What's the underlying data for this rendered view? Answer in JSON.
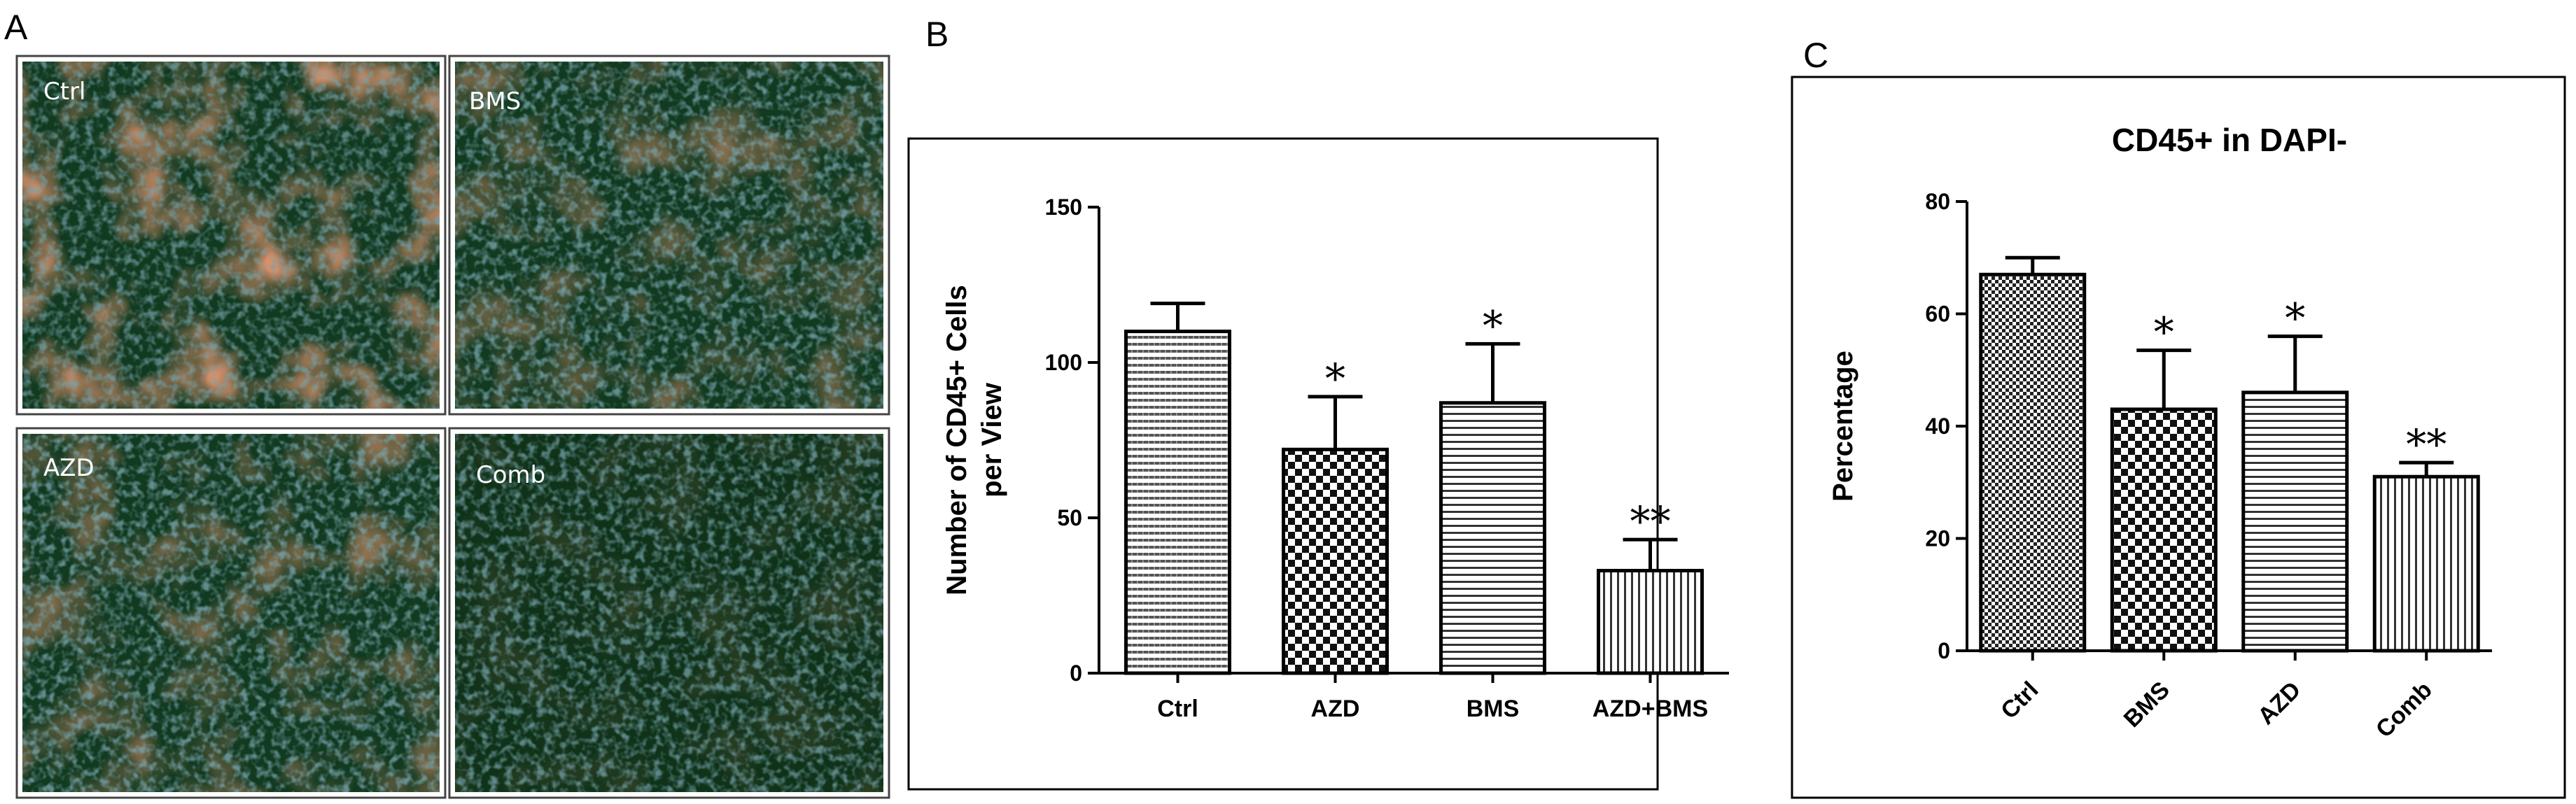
{
  "panel_labels": {
    "a": "A",
    "b": "B",
    "c": "C"
  },
  "micrographs": [
    {
      "label": "Ctrl",
      "stain": "high"
    },
    {
      "label": "BMS",
      "stain": "medium"
    },
    {
      "label": "AZD",
      "stain": "medium"
    },
    {
      "label": "Comb",
      "stain": "low"
    }
  ],
  "colors": {
    "tissue_base": "#123a20",
    "nucleus": "#2f5b66",
    "cd45_stain": "#c0502a",
    "text": "#000000"
  },
  "chart_data": [
    {
      "type": "bar",
      "panel": "B",
      "title": "",
      "ylabel_line1": "Number of CD45+ Cells",
      "ylabel_line2": "per View",
      "xlabel": "",
      "ylim": [
        0,
        150
      ],
      "yticks": [
        0,
        50,
        100,
        150
      ],
      "categories": [
        "Ctrl",
        "AZD",
        "BMS",
        "AZD+BMS"
      ],
      "values": [
        110,
        72,
        87,
        33
      ],
      "errors": [
        9,
        17,
        19,
        10
      ],
      "significance": [
        "",
        "*",
        "*",
        "**"
      ],
      "patterns": [
        "hlines-fine",
        "checker",
        "hlines",
        "vlines"
      ],
      "grid": false
    },
    {
      "type": "bar",
      "panel": "C",
      "title": "CD45+ in DAPI-",
      "ylabel": "Percentage",
      "xlabel": "",
      "ylim": [
        0,
        80
      ],
      "yticks": [
        0,
        20,
        40,
        60,
        80
      ],
      "categories": [
        "Ctrl",
        "BMS",
        "AZD",
        "Comb"
      ],
      "values": [
        67,
        43,
        46,
        31
      ],
      "errors": [
        3,
        10.5,
        10,
        2.5
      ],
      "significance": [
        "",
        "*",
        "*",
        "**"
      ],
      "patterns": [
        "checker-fine",
        "checker",
        "hlines",
        "vlines"
      ],
      "grid": false
    }
  ]
}
